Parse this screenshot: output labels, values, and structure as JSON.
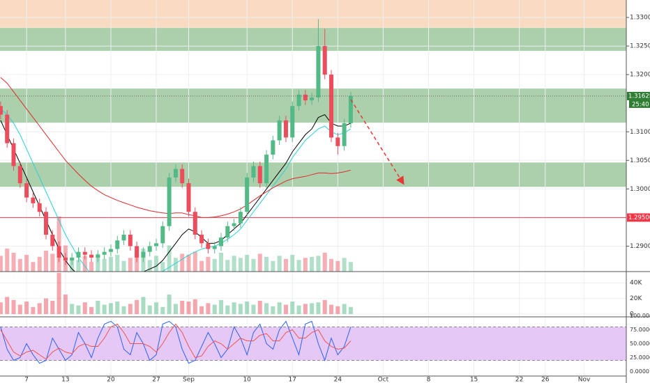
{
  "chart_data": {
    "type": "candlestick",
    "x": [
      3,
      4,
      5,
      6,
      7,
      8,
      9,
      10,
      11,
      12,
      13,
      14,
      15,
      16,
      17,
      18,
      19,
      20,
      21,
      22,
      23,
      24,
      25,
      26,
      27,
      28,
      29,
      30,
      31,
      32,
      33,
      34,
      35,
      36,
      37,
      38,
      39,
      40,
      41,
      42,
      43,
      44,
      45,
      46,
      47,
      48,
      49,
      50,
      51,
      52,
      53,
      54,
      55,
      56,
      57
    ],
    "open": [
      1.3145,
      1.313,
      1.308,
      1.304,
      1.301,
      1.2985,
      1.2975,
      1.296,
      1.292,
      1.29,
      1.288,
      1.2875,
      1.288,
      1.289,
      1.2885,
      1.288,
      1.2885,
      1.289,
      1.2895,
      1.291,
      1.292,
      1.29,
      1.288,
      1.289,
      1.29,
      1.2905,
      1.2935,
      1.302,
      1.3035,
      1.301,
      1.296,
      1.292,
      1.2905,
      1.2895,
      1.29,
      1.2915,
      1.2935,
      1.294,
      1.296,
      1.302,
      1.304,
      1.301,
      1.306,
      1.3085,
      1.312,
      1.309,
      1.3145,
      1.3165,
      1.3155,
      1.316,
      1.325,
      1.32,
      1.309,
      1.3075,
      1.3115
    ],
    "high": [
      1.3153,
      1.3138,
      1.3088,
      1.3048,
      1.3018,
      1.2993,
      1.2983,
      1.2968,
      1.2928,
      1.2908,
      1.2888,
      1.2888,
      1.2898,
      1.2898,
      1.2893,
      1.2893,
      1.2898,
      1.2903,
      1.2918,
      1.2928,
      1.2928,
      1.2908,
      1.2898,
      1.2908,
      1.2913,
      1.2943,
      1.3028,
      1.3043,
      1.3043,
      1.3018,
      1.2968,
      1.2928,
      1.2913,
      1.2908,
      1.2923,
      1.2943,
      1.2948,
      1.2968,
      1.3028,
      1.3048,
      1.3048,
      1.3068,
      1.3093,
      1.3128,
      1.3128,
      1.3153,
      1.3173,
      1.3173,
      1.3168,
      1.3297,
      1.328,
      1.3208,
      1.3098,
      1.3123,
      1.317
    ],
    "low": [
      1.3122,
      1.3072,
      1.3032,
      1.3002,
      1.2977,
      1.2967,
      1.2952,
      1.2912,
      1.2892,
      1.2872,
      1.2867,
      1.2867,
      1.2872,
      1.2877,
      1.2872,
      1.2872,
      1.2877,
      1.2882,
      1.2887,
      1.2902,
      1.2892,
      1.2872,
      1.2872,
      1.2882,
      1.2892,
      1.2897,
      1.2927,
      1.3012,
      1.3002,
      1.2952,
      1.2912,
      1.2897,
      1.2887,
      1.2887,
      1.2892,
      1.2907,
      1.2927,
      1.2932,
      1.2952,
      1.3012,
      1.3002,
      1.3002,
      1.3052,
      1.3077,
      1.3082,
      1.3082,
      1.3137,
      1.3147,
      1.3147,
      1.3152,
      1.3192,
      1.3082,
      1.306,
      1.3067,
      1.3107
    ],
    "close": [
      1.313,
      1.308,
      1.304,
      1.301,
      1.2985,
      1.2975,
      1.296,
      1.292,
      1.29,
      1.288,
      1.2875,
      1.288,
      1.289,
      1.2885,
      1.288,
      1.2885,
      1.289,
      1.2895,
      1.291,
      1.292,
      1.29,
      1.288,
      1.289,
      1.29,
      1.2905,
      1.2935,
      1.302,
      1.3035,
      1.301,
      1.296,
      1.292,
      1.2905,
      1.2895,
      1.29,
      1.2915,
      1.2935,
      1.294,
      1.296,
      1.302,
      1.304,
      1.301,
      1.306,
      1.3085,
      1.312,
      1.309,
      1.3145,
      1.3165,
      1.3155,
      1.316,
      1.325,
      1.32,
      1.309,
      1.3075,
      1.3115,
      1.31625
    ],
    "up_color": "#53b987",
    "down_color": "#eb4d5c",
    "xlim": [
      2.9,
      99.5
    ],
    "xticks": [
      7,
      13,
      20,
      27,
      {
        "value": 32,
        "label": "Sep"
      },
      {
        "value": 41,
        "label": "10"
      },
      {
        "value": 48,
        "label": "17"
      },
      {
        "value": 55,
        "label": "24"
      },
      {
        "value": 62,
        "label": "Oct"
      },
      {
        "value": 69,
        "label": "8"
      },
      {
        "value": 76,
        "label": "15"
      },
      {
        "value": 83,
        "label": "22"
      },
      {
        "value": 87,
        "label": "26"
      },
      {
        "value": 93,
        "label": "Nov"
      }
    ],
    "ylim": [
      1.28555,
      1.33305
    ],
    "yticks": [
      {
        "value": 1.33,
        "label": "1.33000"
      },
      {
        "value": 1.325,
        "label": "1.32500"
      },
      {
        "value": 1.32,
        "label": "1.32000"
      },
      {
        "value": 1.31,
        "label": "1.31000"
      },
      {
        "value": 1.305,
        "label": "1.30500"
      },
      {
        "value": 1.3,
        "label": "1.30000"
      },
      {
        "value": 1.29,
        "label": "1.29000"
      }
    ],
    "overlays": [
      {
        "color": "#000000",
        "values": [
          1.312,
          1.3095,
          1.307,
          1.3045,
          1.302,
          1.2995,
          1.297,
          1.2945,
          1.292,
          1.2895,
          1.2875,
          1.286,
          1.285,
          1.2845,
          1.2842,
          1.284,
          1.284,
          1.2842,
          1.2845,
          1.2848,
          1.285,
          1.2852,
          1.2855,
          1.286,
          1.2865,
          1.2875,
          1.289,
          1.2905,
          1.292,
          1.293,
          1.2925,
          1.2915,
          1.2905,
          1.2905,
          1.291,
          1.292,
          1.293,
          1.294,
          1.2955,
          1.297,
          1.2985,
          1.3,
          1.3015,
          1.303,
          1.3045,
          1.3065,
          1.308,
          1.3095,
          1.3105,
          1.3125,
          1.313,
          1.3115,
          1.311,
          1.311,
          1.3115
        ]
      },
      {
        "color": "#2ad1d9",
        "values": [
          1.314,
          1.313,
          1.3115,
          1.3095,
          1.307,
          1.3045,
          1.302,
          1.2995,
          1.297,
          1.2945,
          1.292,
          1.29,
          1.288,
          1.2865,
          1.285,
          1.284,
          1.2835,
          1.283,
          1.283,
          1.2832,
          1.2835,
          1.2838,
          1.2842,
          1.2846,
          1.285,
          1.2856,
          1.2863,
          1.287,
          1.2877,
          1.2884,
          1.289,
          1.2895,
          1.2898,
          1.29,
          1.2905,
          1.2912,
          1.292,
          1.293,
          1.2945,
          1.296,
          1.2975,
          1.299,
          1.3005,
          1.302,
          1.3035,
          1.3055,
          1.307,
          1.3085,
          1.3095,
          1.3105,
          1.311,
          1.31,
          1.3095,
          1.3098,
          1.3105
        ]
      },
      {
        "color": "#e0282e",
        "values": [
          1.3195,
          1.3185,
          1.317,
          1.3155,
          1.314,
          1.3125,
          1.311,
          1.3095,
          1.308,
          1.3065,
          1.305,
          1.3038,
          1.3026,
          1.3015,
          1.3005,
          1.2997,
          1.299,
          1.2985,
          1.298,
          1.2976,
          1.2972,
          1.2968,
          1.2965,
          1.2962,
          1.296,
          1.2958,
          1.2957,
          1.2958,
          1.2958,
          1.2955,
          1.2953,
          1.295,
          1.295,
          1.2951,
          1.2953,
          1.2956,
          1.296,
          1.2965,
          1.2972,
          1.298,
          1.2988,
          1.2995,
          1.3002,
          1.3008,
          1.3014,
          1.3018,
          1.302,
          1.3022,
          1.3025,
          1.3028,
          1.3028,
          1.3027,
          1.3028,
          1.303,
          1.3033
        ]
      }
    ],
    "zones": [
      {
        "from": 1.3282,
        "to": 1.33305,
        "color": "#f7cfae"
      },
      {
        "from": 1.32415,
        "to": 1.32817,
        "color": "#8fc08f"
      },
      {
        "from": 1.31159,
        "to": 1.31756,
        "color": "#8fc08f"
      },
      {
        "from": 1.30037,
        "to": 1.30463,
        "color": "#8fc08f"
      }
    ],
    "hline": {
      "value": 1.295,
      "label": "1.29500",
      "color": "#f23645"
    },
    "last_price": {
      "value": 1.31625,
      "label": "1.31625",
      "countdown": "25:40",
      "color": "#2e7d32"
    },
    "volume": {
      "values": [
        15000,
        22000,
        18000,
        12000,
        16000,
        9000,
        14000,
        20000,
        17000,
        53000,
        25000,
        13000,
        11000,
        15000,
        9000,
        17000,
        12000,
        14000,
        16000,
        10000,
        13000,
        18000,
        22000,
        11000,
        15000,
        9000,
        25000,
        13000,
        17000,
        16000,
        19000,
        10000,
        14000,
        12000,
        18000,
        11000,
        15000,
        13000,
        16000,
        12000,
        17000,
        14000,
        10000,
        15000,
        12000,
        16000,
        11000,
        13000,
        14000,
        15000,
        18000,
        12000,
        10000,
        13000,
        9000
      ],
      "ylim": [
        -3600,
        53600
      ],
      "yticks": [
        {
          "value": 40000,
          "label": "40K"
        },
        {
          "value": 20000,
          "label": "20K"
        },
        0
      ]
    },
    "stochastic": {
      "k": {
        "color": "#2962ff",
        "values": [
          80,
          40,
          20,
          25,
          50,
          30,
          15,
          20,
          60,
          40,
          20,
          30,
          70,
          50,
          25,
          60,
          85,
          90,
          80,
          40,
          30,
          70,
          50,
          20,
          30,
          85,
          90,
          80,
          40,
          15,
          20,
          45,
          70,
          50,
          25,
          40,
          80,
          60,
          30,
          70,
          85,
          50,
          40,
          75,
          90,
          60,
          30,
          85,
          90,
          50,
          20,
          60,
          30,
          45,
          80
        ]
      },
      "d": {
        "color": "#ef5350",
        "values": [
          75,
          55,
          35,
          28,
          35,
          38,
          30,
          22,
          35,
          42,
          35,
          32,
          45,
          50,
          45,
          45,
          60,
          80,
          85,
          70,
          50,
          50,
          50,
          45,
          35,
          50,
          70,
          85,
          70,
          45,
          25,
          28,
          45,
          55,
          50,
          40,
          50,
          60,
          55,
          55,
          65,
          68,
          55,
          55,
          70,
          75,
          60,
          60,
          70,
          75,
          55,
          45,
          40,
          42,
          55
        ]
      },
      "ylim": [
        -8,
        103
      ],
      "yticks": [
        {
          "value": 100,
          "label": "100.0000"
        },
        {
          "value": 75,
          "label": "75.0000"
        },
        {
          "value": 50,
          "label": "50.0000"
        },
        {
          "value": 25,
          "label": "25.0000"
        },
        {
          "value": 0,
          "label": "0.0000"
        }
      ],
      "band": [
        20,
        80
      ],
      "band_color": "#e6c8f7"
    }
  }
}
